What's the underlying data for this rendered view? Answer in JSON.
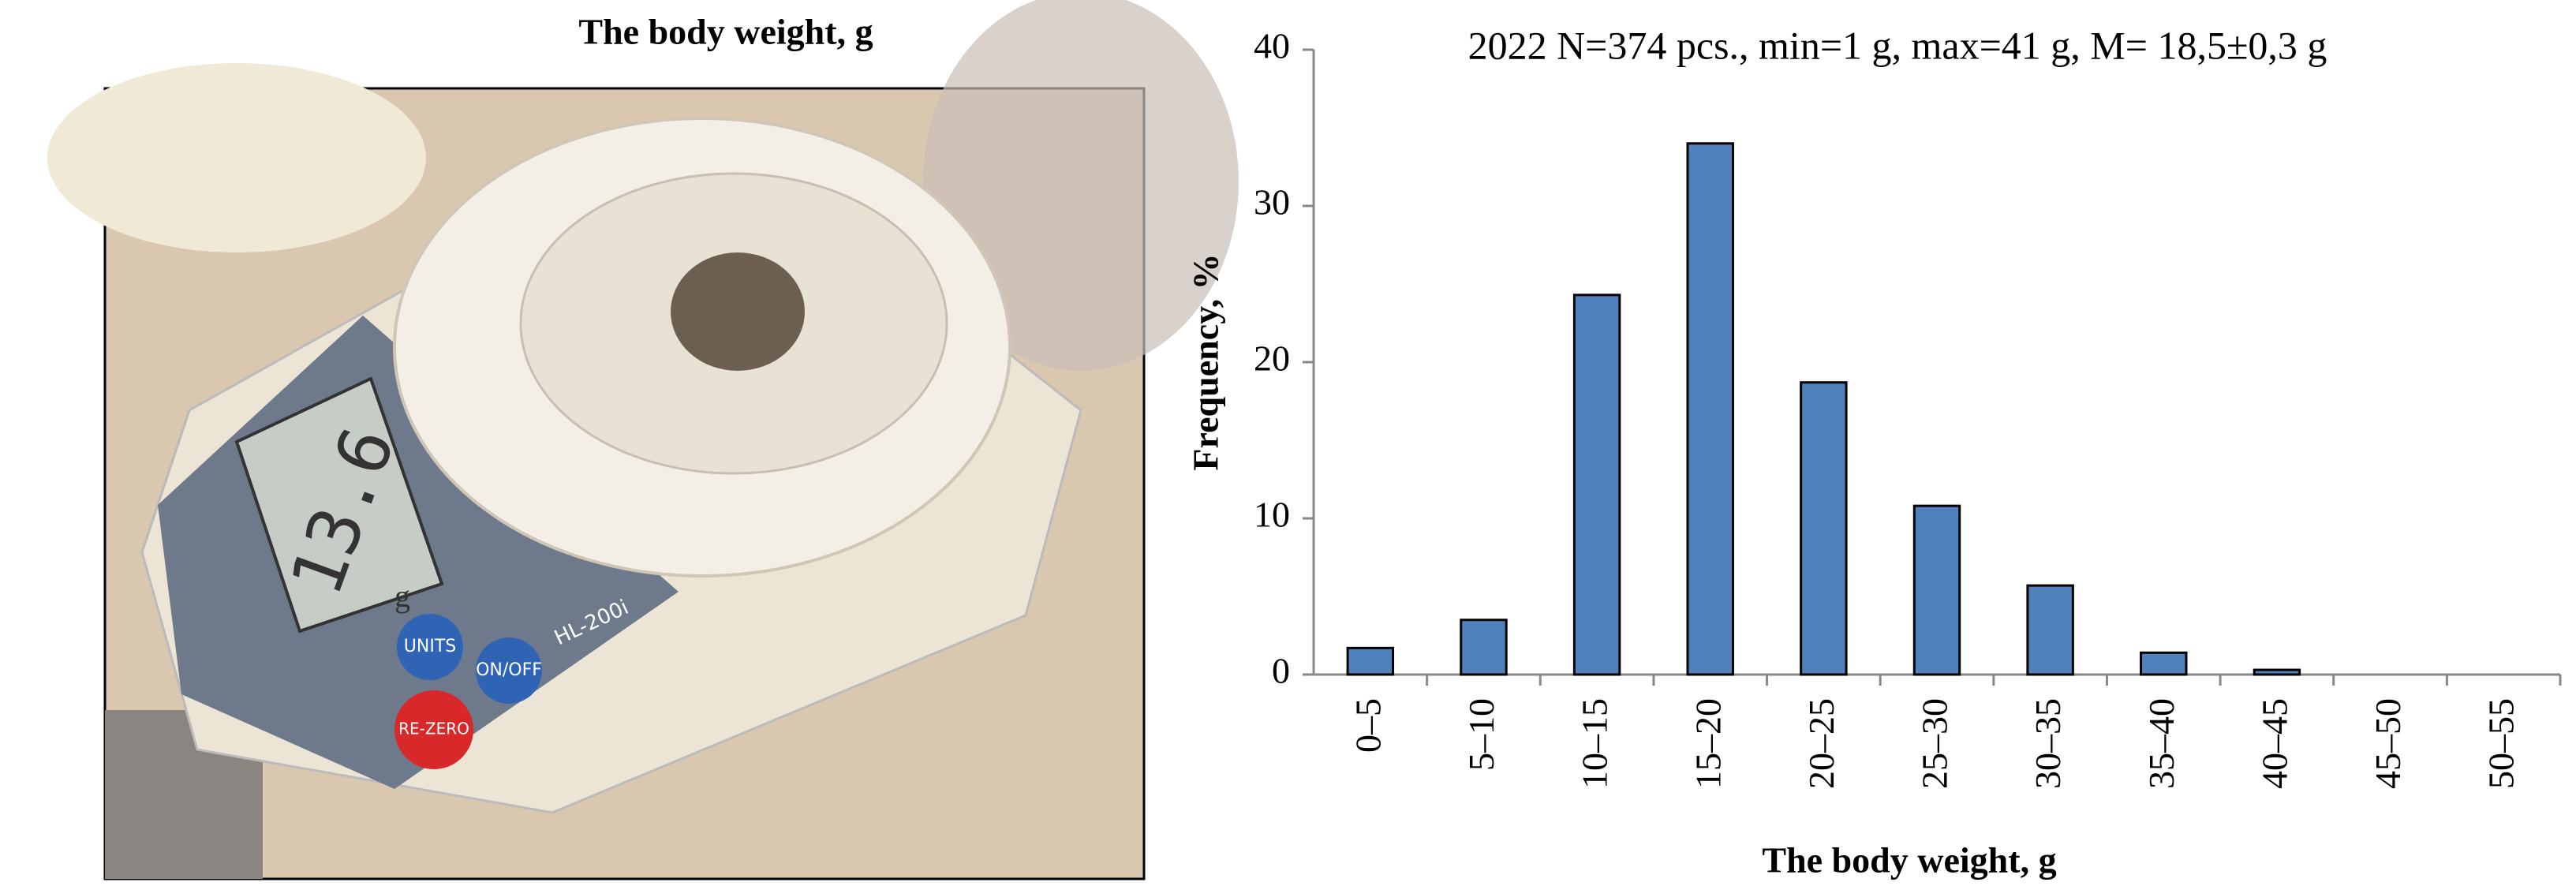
{
  "photo": {
    "title": "The body weight, g",
    "display": "13.6",
    "unit": "g",
    "buttons": [
      "UNITS",
      "ON/OFF",
      "RE-ZERO"
    ],
    "model": "HL-200i"
  },
  "chart_data": {
    "type": "bar",
    "title": "2022 N=374 pcs., min=1 g, max=41 g, M= 18,5±0,3 g",
    "x_label": "The body weight, g",
    "y_label": "Frequency, %",
    "categories": [
      "0–5",
      "5–10",
      "10–15",
      "15–20",
      "20–25",
      "25–30",
      "30–35",
      "35–40",
      "40–45",
      "45–50",
      "50–55"
    ],
    "values": [
      1.7,
      3.5,
      24.3,
      34,
      18.7,
      10.8,
      5.7,
      1.4,
      0.3,
      0,
      0
    ],
    "color": "#4f81bd",
    "ylim": [
      0,
      40
    ],
    "yticks": [
      0,
      10,
      20,
      30,
      40
    ],
    "grid": false
  }
}
